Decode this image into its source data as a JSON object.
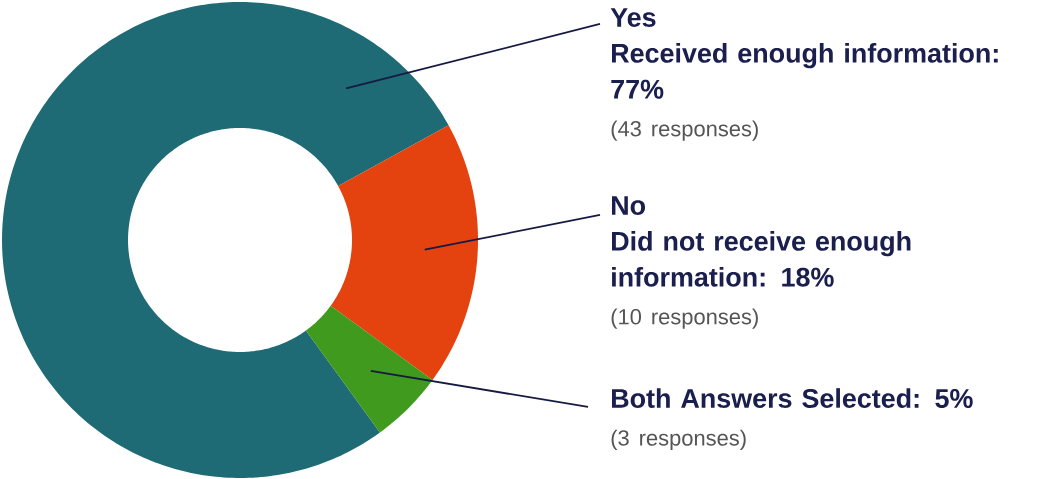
{
  "chart_data": {
    "type": "donut",
    "categories": [
      "Yes",
      "No",
      null
    ],
    "values": [
      77,
      18,
      5
    ],
    "colors": [
      "#1f6b75",
      "#e4420f",
      "#3f9a1e"
    ],
    "value_labels": [
      "Received enough information: 77%",
      "Did not receive enough information: 18%",
      "Both Answers Selected: 5%"
    ],
    "annotations": [
      "(43 responses)",
      "(10 responses)",
      "(3 responses)"
    ]
  }
}
